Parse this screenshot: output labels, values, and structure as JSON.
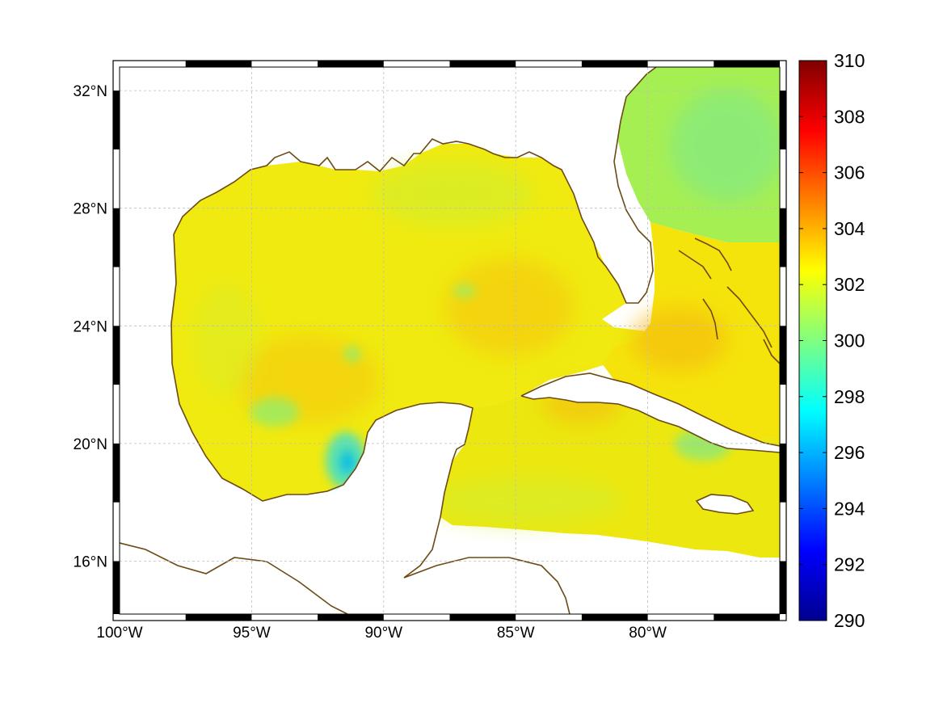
{
  "map": {
    "lon_range": [
      -100,
      -75
    ],
    "lat_range": [
      14.2,
      32.8
    ],
    "lon_ticks": [
      {
        "value": -100,
        "label": "100°W"
      },
      {
        "value": -95,
        "label": "95°W"
      },
      {
        "value": -90,
        "label": "90°W"
      },
      {
        "value": -85,
        "label": "85°W"
      },
      {
        "value": -80,
        "label": "80°W"
      }
    ],
    "lat_ticks": [
      {
        "value": 32,
        "label": "32°N"
      },
      {
        "value": 28,
        "label": "28°N"
      },
      {
        "value": 24,
        "label": "24°N"
      },
      {
        "value": 20,
        "label": "20°N"
      },
      {
        "value": 16,
        "label": "16°N"
      }
    ],
    "grid": true,
    "coastline_color": "#6b4a14",
    "land_color": "#ffffff"
  },
  "colorbar": {
    "min": 290,
    "max": 310,
    "ticks": [
      {
        "value": 310,
        "label": "310"
      },
      {
        "value": 308,
        "label": "308"
      },
      {
        "value": 306,
        "label": "306"
      },
      {
        "value": 304,
        "label": "304"
      },
      {
        "value": 302,
        "label": "302"
      },
      {
        "value": 300,
        "label": "300"
      },
      {
        "value": 298,
        "label": "298"
      },
      {
        "value": 296,
        "label": "296"
      },
      {
        "value": 294,
        "label": "294"
      },
      {
        "value": 292,
        "label": "292"
      },
      {
        "value": 290,
        "label": "290"
      }
    ],
    "colormap": "jet"
  },
  "field": {
    "typical_value": 302.8,
    "atlantic_value": 301.0,
    "cool_spot_value": 297.5,
    "warm_patch_value": 303.8
  }
}
